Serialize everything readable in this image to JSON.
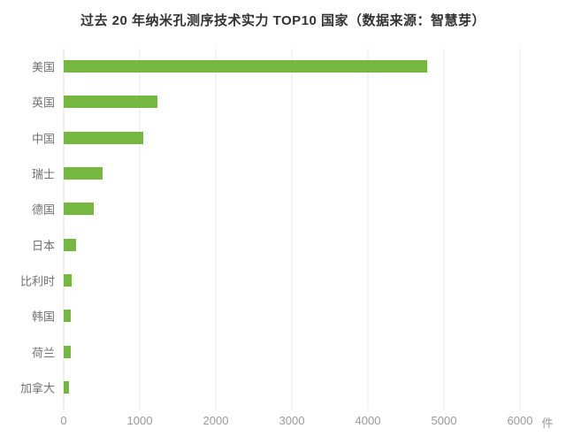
{
  "chart_data": {
    "type": "bar",
    "orientation": "horizontal",
    "title": "过去 20 年纳米孔测序技术实力 TOP10 国家（数据来源：智慧芽）",
    "categories": [
      "美国",
      "英国",
      "中国",
      "瑞士",
      "德国",
      "日本",
      "比利时",
      "韩国",
      "荷兰",
      "加拿大"
    ],
    "values": [
      4780,
      1230,
      1050,
      510,
      395,
      165,
      110,
      95,
      90,
      75
    ],
    "xlabel": "",
    "ylabel": "",
    "x_unit": "件",
    "x_ticks": [
      0,
      1000,
      2000,
      3000,
      4000,
      5000,
      6000
    ],
    "xlim": [
      0,
      6000
    ],
    "bar_color": "#74b842",
    "grid": true,
    "gridline_color": "#e9e9e9",
    "legend_position": "none",
    "title_color": "#333333",
    "category_label_color": "#737373",
    "tick_label_color": "#999999"
  }
}
